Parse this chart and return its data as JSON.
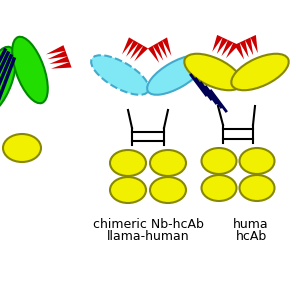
{
  "bg_color": "#ffffff",
  "label1_line1": "chimeric Nb-hcAb",
  "label1_line2": "llama-human",
  "label2_line1": "huma",
  "label2_line2": "hcAb",
  "yellow": "#f0f000",
  "yellow_outline": "#888800",
  "cyan": "#7fe8f4",
  "cyan_outline": "#44aacc",
  "red": "#cc0000",
  "green": "#22dd00",
  "green_outline": "#008800",
  "dark_navy": "#000055",
  "black": "#000000",
  "label_fontsize": 9.0,
  "fig_width": 2.96,
  "fig_height": 2.96
}
